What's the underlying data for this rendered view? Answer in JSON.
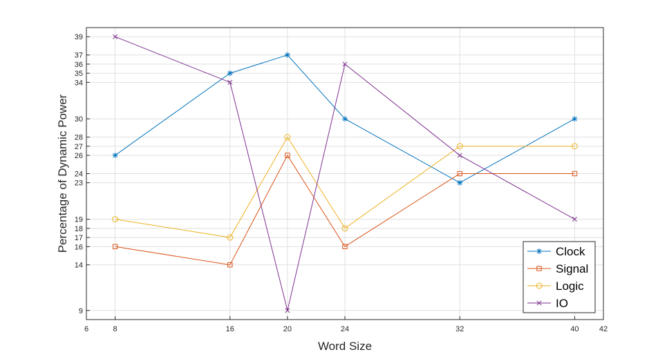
{
  "chart_data": {
    "type": "line",
    "title": "",
    "xlabel": "Word Size",
    "ylabel": "Percentage of Dynamic Power",
    "xlim": [
      6,
      42
    ],
    "ylim": [
      8,
      40
    ],
    "x_ticks": [
      6,
      8,
      16,
      20,
      24,
      32,
      40,
      42
    ],
    "y_ticks": [
      9,
      14,
      16,
      17,
      18,
      19,
      23,
      24,
      26,
      27,
      28,
      30,
      34,
      35,
      36,
      37,
      39
    ],
    "grid": true,
    "legend_position": "bottom-right",
    "x": [
      8,
      16,
      20,
      24,
      32,
      40
    ],
    "series": [
      {
        "name": "Clock",
        "values": [
          26,
          35,
          37,
          30,
          23,
          30
        ],
        "color": "#0072BD",
        "marker": "star"
      },
      {
        "name": "Signal",
        "values": [
          16,
          14,
          26,
          16,
          24,
          24
        ],
        "color": "#D95319",
        "marker": "square"
      },
      {
        "name": "Logic",
        "values": [
          19,
          17,
          28,
          18,
          27,
          27
        ],
        "color": "#EDB120",
        "marker": "circle"
      },
      {
        "name": "IO",
        "values": [
          39,
          34,
          9,
          36,
          26,
          19
        ],
        "color": "#7E2F8E",
        "marker": "x"
      }
    ]
  }
}
